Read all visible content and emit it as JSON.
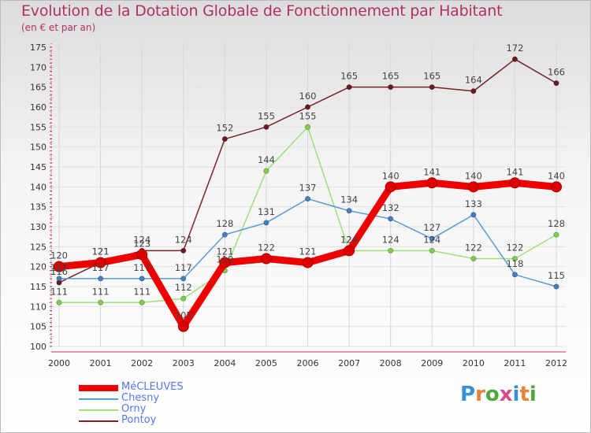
{
  "header": {
    "title": "Evolution de la Dotation Globale de Fonctionnement par Habitant",
    "subtitle": "(en € et par an)"
  },
  "brand": {
    "name": "Proxiti",
    "colors": [
      "#3a8fd6",
      "#e8823a",
      "#4fa83d",
      "#d94a8a",
      "#3a8fd6",
      "#e8823a",
      "#4fa83d"
    ]
  },
  "chart_data": {
    "type": "line",
    "title": "Evolution de la Dotation Globale de Fonctionnement par Habitant",
    "subtitle": "(en € et par an)",
    "xlabel": "",
    "ylabel": "",
    "ylim": [
      100,
      175
    ],
    "yticks": [
      100,
      105,
      110,
      115,
      120,
      125,
      130,
      135,
      140,
      145,
      150,
      155,
      160,
      165,
      170,
      175
    ],
    "categories": [
      "2000",
      "2001",
      "2002",
      "2003",
      "2004",
      "2005",
      "2006",
      "2007",
      "2008",
      "2009",
      "2010",
      "2011",
      "2012"
    ],
    "legend_position": "bottom-left",
    "series": [
      {
        "name": "Pontoy",
        "color": "#7a2228",
        "marker": "#6a1a20",
        "values": [
          116,
          121,
          124,
          124,
          152,
          155,
          160,
          165,
          165,
          165,
          164,
          172,
          166
        ]
      },
      {
        "name": "Orny",
        "color": "#9fe07a",
        "marker": "#7ccf4a",
        "values": [
          111,
          111,
          111,
          112,
          119,
          144,
          155,
          124,
          124,
          124,
          122,
          122,
          128
        ]
      },
      {
        "name": "Chesny",
        "color": "#5b9bd5",
        "marker": "#3f7fc0",
        "values": [
          117,
          117,
          117,
          117,
          128,
          131,
          137,
          134,
          132,
          127,
          133,
          118,
          115
        ]
      },
      {
        "name": "MéCLEUVES",
        "color": "#ee0000",
        "marker": "#dd0000",
        "values": [
          120,
          121,
          123,
          105,
          121,
          122,
          121,
          124,
          140,
          141,
          140,
          141,
          140
        ]
      }
    ]
  }
}
